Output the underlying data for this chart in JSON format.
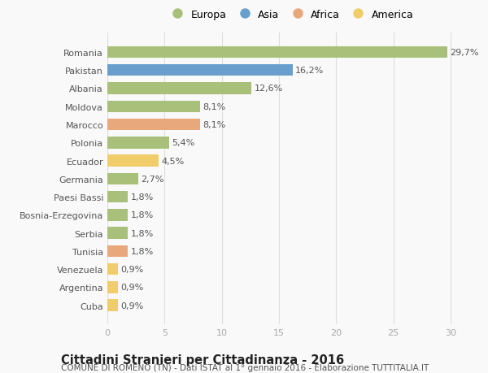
{
  "categories": [
    "Romania",
    "Pakistan",
    "Albania",
    "Moldova",
    "Marocco",
    "Polonia",
    "Ecuador",
    "Germania",
    "Paesi Bassi",
    "Bosnia-Erzegovina",
    "Serbia",
    "Tunisia",
    "Venezuela",
    "Argentina",
    "Cuba"
  ],
  "values": [
    29.7,
    16.2,
    12.6,
    8.1,
    8.1,
    5.4,
    4.5,
    2.7,
    1.8,
    1.8,
    1.8,
    1.8,
    0.9,
    0.9,
    0.9
  ],
  "labels": [
    "29,7%",
    "16,2%",
    "12,6%",
    "8,1%",
    "8,1%",
    "5,4%",
    "4,5%",
    "2,7%",
    "1,8%",
    "1,8%",
    "1,8%",
    "1,8%",
    "0,9%",
    "0,9%",
    "0,9%"
  ],
  "continents": [
    "Europa",
    "Asia",
    "Europa",
    "Europa",
    "Africa",
    "Europa",
    "America",
    "Europa",
    "Europa",
    "Europa",
    "Europa",
    "Africa",
    "America",
    "America",
    "America"
  ],
  "colors": {
    "Europa": "#a8c07a",
    "Asia": "#6a9fcd",
    "Africa": "#e8a87c",
    "America": "#f0cc6a"
  },
  "legend_order": [
    "Europa",
    "Asia",
    "Africa",
    "America"
  ],
  "xlim": [
    0,
    32
  ],
  "xticks": [
    0,
    5,
    10,
    15,
    20,
    25,
    30
  ],
  "title": "Cittadini Stranieri per Cittadinanza - 2016",
  "subtitle": "COMUNE DI ROMENO (TN) - Dati ISTAT al 1° gennaio 2016 - Elaborazione TUTTITALIA.IT",
  "background_color": "#f9f9f9",
  "bar_height": 0.65,
  "label_fontsize": 8,
  "ytick_fontsize": 8,
  "xtick_fontsize": 8,
  "title_fontsize": 10.5,
  "subtitle_fontsize": 7.5
}
